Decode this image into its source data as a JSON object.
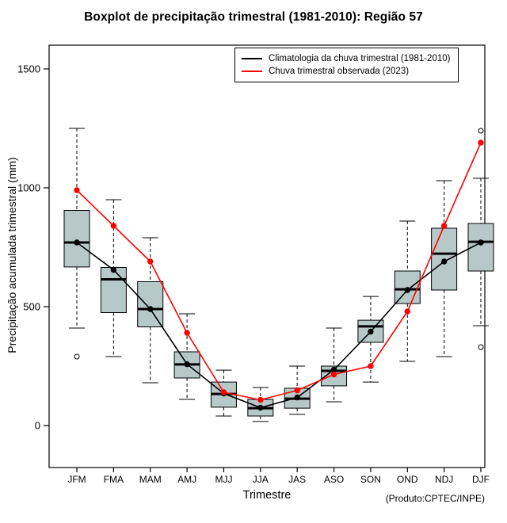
{
  "chart_data": {
    "type": "boxplot",
    "title": "Boxplot de precipitação trimestral (1981-2010): Região 57",
    "xlabel": "Trimestre",
    "ylabel": "Precipitação acumulada trimestral (mm)",
    "annotation": "(Produto:CPTEC/INPE)",
    "categories": [
      "JFM",
      "FMA",
      "MAM",
      "AMJ",
      "MJJ",
      "JJA",
      "JAS",
      "ASO",
      "SON",
      "OND",
      "NDJ",
      "DJF"
    ],
    "ylim": [
      0,
      1500
    ],
    "yticks": [
      0,
      500,
      1000,
      1500
    ],
    "grid": false,
    "legend_position": "top-right-inside",
    "box_fill": "#b7c8c8",
    "box_stroke": "#000000",
    "boxes": [
      {
        "lo": 410,
        "q1": 667,
        "median": 770,
        "q3": 905,
        "hi": 1250,
        "outliers": [
          290
        ]
      },
      {
        "lo": 290,
        "q1": 475,
        "median": 615,
        "q3": 665,
        "hi": 950,
        "outliers": []
      },
      {
        "lo": 180,
        "q1": 415,
        "median": 490,
        "q3": 605,
        "hi": 790,
        "outliers": []
      },
      {
        "lo": 110,
        "q1": 200,
        "median": 257,
        "q3": 310,
        "hi": 470,
        "outliers": []
      },
      {
        "lo": 40,
        "q1": 77,
        "median": 133,
        "q3": 183,
        "hi": 233,
        "outliers": []
      },
      {
        "lo": 17,
        "q1": 40,
        "median": 73,
        "q3": 110,
        "hi": 160,
        "outliers": []
      },
      {
        "lo": 47,
        "q1": 73,
        "median": 113,
        "q3": 157,
        "hi": 250,
        "outliers": []
      },
      {
        "lo": 100,
        "q1": 167,
        "median": 230,
        "q3": 250,
        "hi": 410,
        "outliers": []
      },
      {
        "lo": 183,
        "q1": 350,
        "median": 417,
        "q3": 443,
        "hi": 543,
        "outliers": []
      },
      {
        "lo": 270,
        "q1": 513,
        "median": 573,
        "q3": 650,
        "hi": 860,
        "outliers": []
      },
      {
        "lo": 290,
        "q1": 570,
        "median": 723,
        "q3": 830,
        "hi": 1030,
        "outliers": []
      },
      {
        "lo": 420,
        "q1": 650,
        "median": 773,
        "q3": 850,
        "hi": 1040,
        "outliers": [
          330,
          1240
        ]
      }
    ],
    "series": [
      {
        "name": "Climatologia da chuva trimestral (1981-2010)",
        "color": "#000000",
        "values": [
          770,
          655,
          490,
          258,
          135,
          75,
          118,
          235,
          395,
          570,
          690,
          770
        ]
      },
      {
        "name": "Chuva trimestral observada (2023)",
        "color": "#ff0000",
        "values": [
          990,
          840,
          690,
          390,
          140,
          108,
          148,
          215,
          250,
          480,
          840,
          1190
        ]
      }
    ]
  }
}
